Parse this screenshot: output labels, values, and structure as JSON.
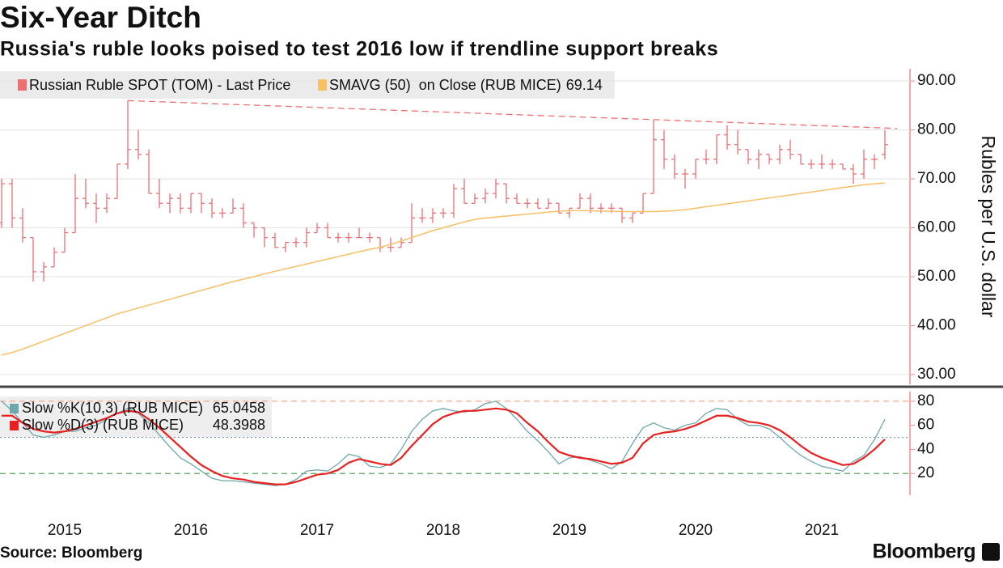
{
  "chart_data": [
    {
      "type": "ohlc",
      "title": "Six-Year Ditch",
      "subtitle": "Russia's ruble looks poised to test 2016 low if trendline support breaks",
      "y_label": "Rubles per U.S. dollar",
      "ylim": [
        28,
        92.5
      ],
      "yticks": [
        {
          "value": 30,
          "label": "30.00"
        },
        {
          "value": 40,
          "label": "40.00"
        },
        {
          "value": 50,
          "label": "50.00"
        },
        {
          "value": 60,
          "label": "60.00"
        },
        {
          "value": 70,
          "label": "70.00"
        },
        {
          "value": 80,
          "label": "80.00"
        },
        {
          "value": 90,
          "label": "90.00"
        }
      ],
      "grid": true,
      "series": [
        {
          "name": "Russian Ruble SPOT (TOM) - Last Price",
          "color": "#ec6f71",
          "open": [
            61,
            69,
            62,
            58,
            51,
            52,
            55,
            59,
            66,
            65,
            64,
            66,
            73,
            76,
            75,
            67,
            65,
            66,
            64,
            67,
            65,
            63,
            63,
            64,
            61,
            60,
            58,
            56,
            57,
            57,
            59,
            60,
            58,
            58,
            58,
            58,
            58,
            56,
            56,
            57,
            62,
            62,
            63,
            63,
            68,
            65,
            66,
            67,
            69,
            66,
            65,
            65,
            64,
            65,
            63,
            64,
            66,
            64,
            64,
            64,
            62,
            63,
            67,
            78,
            74,
            71,
            71,
            74,
            74,
            79,
            77,
            76,
            74,
            75,
            74,
            76,
            75,
            73,
            73,
            73,
            73,
            72,
            71,
            74,
            75
          ],
          "high": [
            70,
            70,
            64,
            58,
            53,
            56,
            60,
            71,
            70,
            67,
            67,
            73,
            86,
            80,
            76,
            70,
            67,
            67,
            67,
            67,
            66,
            64,
            66,
            65,
            61,
            60,
            59,
            57,
            58,
            60,
            61,
            61,
            59,
            59,
            60,
            59,
            58,
            58,
            58,
            65,
            64,
            64,
            64,
            69,
            70,
            67,
            68,
            70,
            69,
            67,
            66,
            66,
            66,
            65,
            64,
            67,
            67,
            65,
            65,
            64,
            63,
            67,
            82,
            80,
            75,
            72,
            74,
            76,
            79,
            81,
            80,
            76,
            76,
            75,
            77,
            78,
            75,
            74,
            75,
            74,
            73,
            73,
            76,
            75,
            80
          ],
          "low": [
            60,
            60,
            57,
            49,
            49,
            52,
            55,
            59,
            64,
            61,
            63,
            66,
            72,
            74,
            67,
            64,
            63,
            63,
            63,
            63,
            62,
            62,
            63,
            60,
            58,
            56,
            56,
            55,
            56,
            56,
            59,
            58,
            57,
            57,
            58,
            57,
            55,
            55,
            56,
            57,
            61,
            61,
            62,
            62,
            65,
            65,
            65,
            66,
            65,
            65,
            64,
            64,
            64,
            63,
            62,
            64,
            63,
            63,
            63,
            61,
            61,
            63,
            67,
            72,
            70,
            68,
            70,
            73,
            73,
            76,
            75,
            73,
            72,
            73,
            73,
            74,
            73,
            72,
            72,
            72,
            72,
            69,
            70,
            72,
            74
          ],
          "close": [
            69,
            62,
            58,
            51,
            52,
            55,
            59,
            66,
            65,
            64,
            66,
            73,
            76,
            75,
            67,
            65,
            66,
            64,
            67,
            65,
            63,
            63,
            64,
            61,
            60,
            58,
            56,
            57,
            57,
            59,
            60,
            58,
            58,
            58,
            58,
            58,
            56,
            56,
            57,
            62,
            62,
            63,
            63,
            68,
            65,
            66,
            67,
            69,
            66,
            65,
            65,
            64,
            65,
            63,
            64,
            66,
            64,
            64,
            64,
            62,
            63,
            67,
            78,
            74,
            71,
            71,
            74,
            74,
            79,
            77,
            76,
            74,
            75,
            74,
            76,
            75,
            73,
            73,
            73,
            73,
            72,
            71,
            74,
            74,
            77
          ]
        },
        {
          "name": "SMAVG (50)  on Close (RUB MICE)",
          "color": "#f7bf66",
          "values": [
            34,
            34.5,
            35.2,
            36,
            36.8,
            37.6,
            38.4,
            39.2,
            40,
            40.8,
            41.6,
            42.4,
            43,
            43.6,
            44.2,
            44.8,
            45.4,
            46,
            46.6,
            47.2,
            47.8,
            48.4,
            49,
            49.5,
            50,
            50.6,
            51.1,
            51.6,
            52.1,
            52.6,
            53.1,
            53.6,
            54.1,
            54.6,
            55.1,
            55.6,
            56,
            56.6,
            57.3,
            58,
            58.7,
            59.4,
            60,
            60.6,
            61.2,
            61.7,
            62,
            62.2,
            62.4,
            62.6,
            62.8,
            63,
            63.2,
            63.4,
            63.5,
            63.5,
            63.5,
            63.4,
            63.4,
            63.3,
            63.3,
            63.3,
            63.3,
            63.4,
            63.5,
            63.7,
            64,
            64.3,
            64.6,
            64.9,
            65.2,
            65.5,
            65.8,
            66.1,
            66.4,
            66.7,
            67,
            67.3,
            67.6,
            67.9,
            68.2,
            68.5,
            68.8,
            69,
            69.14
          ]
        }
      ],
      "trendline": {
        "values": [
          86,
          80.3
        ],
        "color": "#ec6f71"
      }
    },
    {
      "type": "line",
      "categories": [
        null,
        null,
        null,
        null,
        null,
        null,
        "2015",
        null,
        null,
        null,
        null,
        null,
        null,
        null,
        null,
        null,
        null,
        null,
        "2016",
        null,
        null,
        null,
        null,
        null,
        null,
        null,
        null,
        null,
        null,
        null,
        "2017",
        null,
        null,
        null,
        null,
        null,
        null,
        null,
        null,
        null,
        null,
        null,
        "2018",
        null,
        null,
        null,
        null,
        null,
        null,
        null,
        null,
        null,
        null,
        null,
        "2019",
        null,
        null,
        null,
        null,
        null,
        null,
        null,
        null,
        null,
        null,
        null,
        "2020",
        null,
        null,
        null,
        null,
        null,
        null,
        null,
        null,
        null,
        null,
        null,
        "2021",
        null,
        null,
        null,
        null,
        null,
        null
      ],
      "ylim": [
        2,
        88
      ],
      "yticks": [
        20,
        40,
        60,
        80
      ],
      "reference_lines": [
        {
          "value": 80,
          "color": "#f3a98f",
          "style": "dashed"
        },
        {
          "value": 50,
          "color": "#6f95aa",
          "style": "dotted"
        },
        {
          "value": 20,
          "color": "#3f9a45",
          "style": "dashed"
        }
      ],
      "series": [
        {
          "name": "Slow %K(10,3) (RUB MICE)",
          "color": "#6ea7ad",
          "values": [
            80,
            72,
            62,
            52,
            50,
            52,
            55,
            55,
            58,
            60,
            65,
            70,
            74,
            70,
            62,
            52,
            42,
            33,
            28,
            22,
            16,
            14,
            14,
            13,
            12,
            11,
            10,
            11,
            15,
            22,
            23,
            22,
            28,
            36,
            34,
            26,
            25,
            28,
            40,
            55,
            65,
            72,
            74,
            72,
            71,
            73,
            78,
            80,
            74,
            65,
            55,
            47,
            38,
            28,
            33,
            34,
            31,
            28,
            24,
            30,
            45,
            58,
            62,
            58,
            56,
            60,
            62,
            70,
            74,
            73,
            65,
            60,
            60,
            57,
            50,
            42,
            35,
            30,
            26,
            24,
            22,
            30,
            35,
            48,
            65.0458
          ]
        },
        {
          "name": "Slow %D(3) (RUB MICE)",
          "color": "#e8201f",
          "values": [
            68,
            68,
            62,
            57,
            55,
            54,
            55,
            57,
            60,
            63,
            66,
            70,
            72,
            71,
            65,
            58,
            50,
            42,
            34,
            27,
            22,
            18,
            16,
            15,
            13,
            12,
            11,
            11,
            13,
            16,
            19,
            20,
            23,
            29,
            32,
            30,
            28,
            27,
            33,
            43,
            52,
            61,
            67,
            70,
            72,
            72,
            73,
            74,
            73,
            70,
            62,
            55,
            46,
            38,
            35,
            33,
            32,
            30,
            28,
            29,
            33,
            45,
            52,
            54,
            55,
            57,
            60,
            64,
            68,
            68,
            66,
            63,
            62,
            60,
            56,
            50,
            43,
            37,
            33,
            30,
            27,
            28,
            33,
            40,
            48.3988
          ]
        }
      ]
    }
  ],
  "source": "Source: Bloomberg",
  "brand": "Bloomberg"
}
